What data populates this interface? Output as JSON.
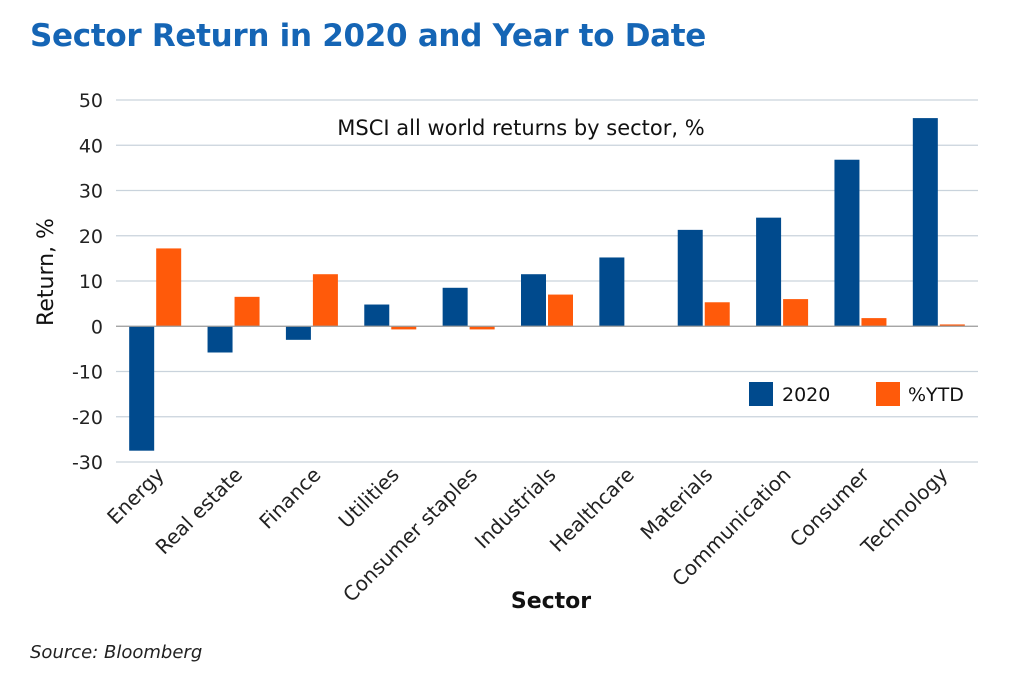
{
  "title": "Sector Return in 2020 and Year to Date",
  "source": "Source: Bloomberg",
  "chart_data": {
    "type": "bar",
    "subtitle": "MSCI all world returns by sector, %",
    "xlabel": "Sector",
    "ylabel": "Return, %",
    "ylim": [
      -30,
      50
    ],
    "yticks": [
      50,
      40,
      30,
      20,
      10,
      0,
      -10,
      -20,
      -30
    ],
    "grid": true,
    "legend_position": "bottom-right",
    "categories": [
      "Energy",
      "Real estate",
      "Finance",
      "Utilities",
      "Consumer staples",
      "Industrials",
      "Healthcare",
      "Materials",
      "Communication",
      "Consumer",
      "Technology"
    ],
    "series": [
      {
        "name": "2020",
        "color": "#004a8d",
        "values": [
          -27.5,
          -5.8,
          -3.0,
          4.8,
          8.5,
          11.5,
          15.2,
          21.3,
          24.0,
          36.8,
          46.0
        ]
      },
      {
        "name": "%YTD",
        "color": "#ff5a0a",
        "values": [
          17.2,
          6.5,
          11.5,
          -0.7,
          -0.7,
          7.0,
          0,
          5.3,
          6.0,
          1.8,
          0.4
        ]
      }
    ]
  }
}
